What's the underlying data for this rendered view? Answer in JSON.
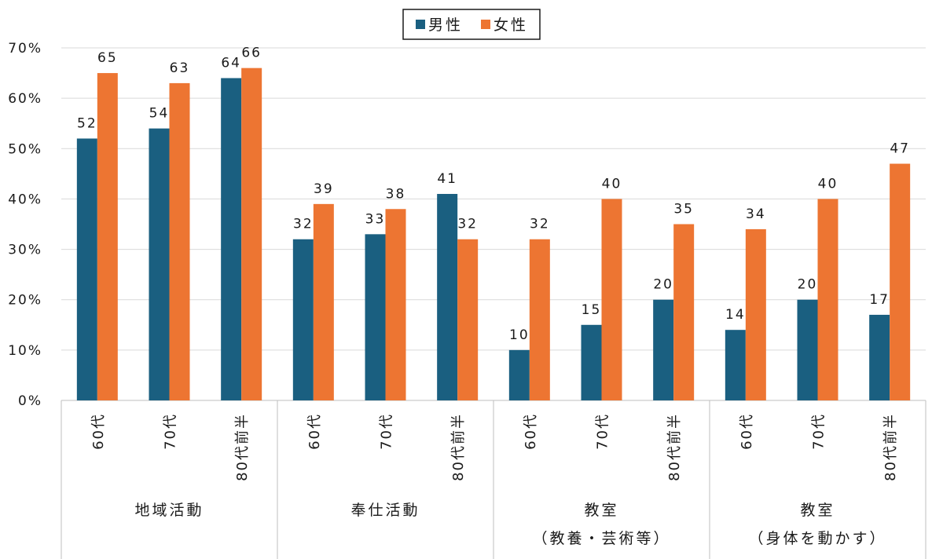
{
  "colors": {
    "male": "#1a5f80",
    "female": "#ed7532",
    "grid": "#d9d9d9",
    "axis": "#bfbfbf"
  },
  "legend": [
    "男性",
    "女性"
  ],
  "chart_data": {
    "type": "bar",
    "ylim": [
      0,
      70
    ],
    "y_ticks": [
      "0%",
      "10%",
      "20%",
      "30%",
      "40%",
      "50%",
      "60%",
      "70%"
    ],
    "grid": true,
    "legend_position": "top",
    "groups": [
      {
        "label_lines": [
          "地域活動"
        ],
        "categories": [
          "60代",
          "70代",
          "80代前半"
        ]
      },
      {
        "label_lines": [
          "奉仕活動"
        ],
        "categories": [
          "60代",
          "70代",
          "80代前半"
        ]
      },
      {
        "label_lines": [
          "教室",
          "（教養・芸術等）"
        ],
        "categories": [
          "60代",
          "70代",
          "80代前半"
        ]
      },
      {
        "label_lines": [
          "教室",
          "（身体を動かす）"
        ],
        "categories": [
          "60代",
          "70代",
          "80代前半"
        ]
      }
    ],
    "series": [
      {
        "name": "男性",
        "values": [
          52,
          54,
          64,
          32,
          33,
          41,
          10,
          15,
          20,
          14,
          20,
          17
        ]
      },
      {
        "name": "女性",
        "values": [
          65,
          63,
          66,
          39,
          38,
          32,
          32,
          40,
          35,
          34,
          40,
          47
        ]
      }
    ]
  }
}
